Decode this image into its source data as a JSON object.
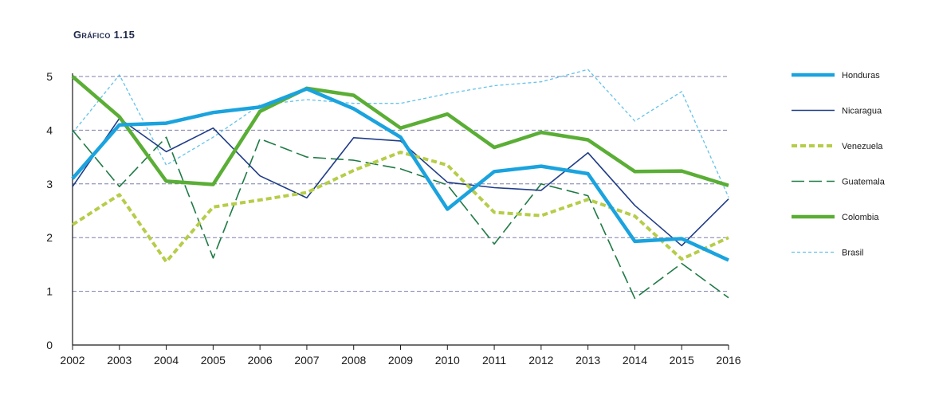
{
  "chart_data": {
    "type": "line",
    "title": "Gráfico 1.15",
    "xlabel": "",
    "ylabel": "",
    "x": [
      "2002",
      "2003",
      "2004",
      "2005",
      "2006",
      "2007",
      "2008",
      "2009",
      "2010",
      "2011",
      "2012",
      "2013",
      "2014",
      "2015",
      "2016"
    ],
    "ylim": [
      0,
      5
    ],
    "yticks": [
      "0",
      "1",
      "2",
      "3",
      "4",
      "5"
    ],
    "grid": "horizontal dashed",
    "legend_position": "right",
    "series": [
      {
        "name": "Honduras",
        "color": "#1aa3de",
        "style": "solid-thick",
        "values": [
          3.1,
          4.1,
          4.13,
          4.33,
          4.43,
          4.77,
          4.4,
          3.87,
          2.53,
          3.23,
          3.33,
          3.19,
          1.93,
          1.98,
          1.58
        ]
      },
      {
        "name": "Nicaragua",
        "color": "#1f3c88",
        "style": "solid-thin",
        "values": [
          2.95,
          4.22,
          3.6,
          4.04,
          3.15,
          2.74,
          3.86,
          3.8,
          3.03,
          2.93,
          2.88,
          3.58,
          2.6,
          1.85,
          2.72
        ]
      },
      {
        "name": "Venezuela",
        "color": "#b5cd48",
        "style": "dashed-thick",
        "values": [
          2.24,
          2.8,
          1.55,
          2.57,
          2.7,
          2.84,
          3.25,
          3.59,
          3.35,
          2.47,
          2.41,
          2.71,
          2.4,
          1.6,
          2.0
        ]
      },
      {
        "name": "Guatemala",
        "color": "#1f7a45",
        "style": "dashed-long",
        "values": [
          4.0,
          2.95,
          3.87,
          1.62,
          3.84,
          3.5,
          3.44,
          3.28,
          2.98,
          1.88,
          3.0,
          2.78,
          0.87,
          1.52,
          0.88
        ]
      },
      {
        "name": "Colombia",
        "color": "#5aae35",
        "style": "solid-thick",
        "values": [
          5.0,
          4.25,
          3.05,
          2.99,
          4.35,
          4.78,
          4.65,
          4.04,
          4.3,
          3.68,
          3.96,
          3.82,
          3.23,
          3.24,
          2.97
        ]
      },
      {
        "name": "Brasil",
        "color": "#63c2ea",
        "style": "dashed-fine",
        "values": [
          3.95,
          5.03,
          3.35,
          3.87,
          4.47,
          4.57,
          4.5,
          4.5,
          4.68,
          4.83,
          4.9,
          5.13,
          4.17,
          4.72,
          2.75
        ]
      }
    ]
  }
}
